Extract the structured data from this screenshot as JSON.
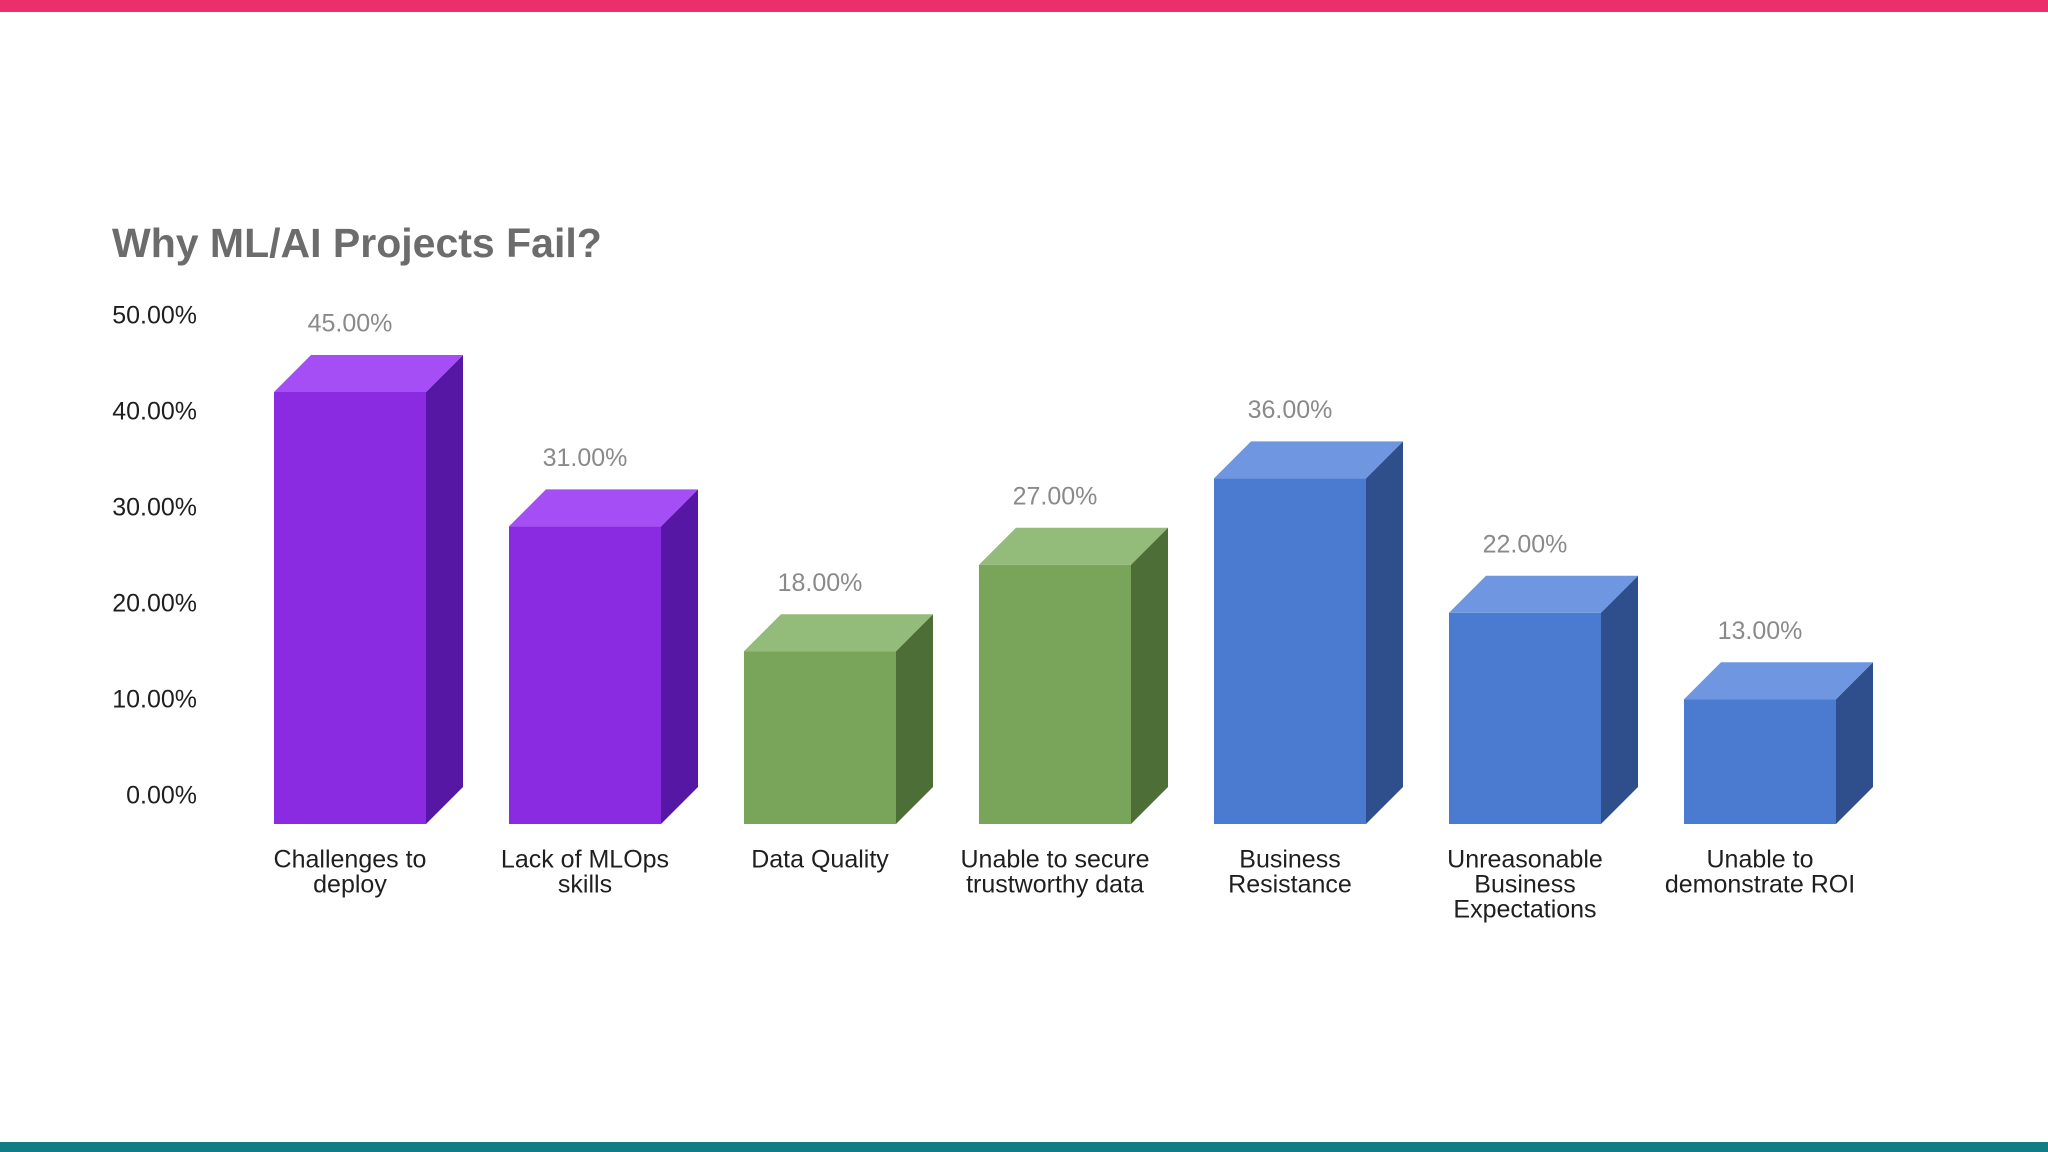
{
  "slide": {
    "top_bar_color": "#ec2f6c",
    "bottom_bar_color": "#117d82"
  },
  "chart_data": {
    "type": "bar",
    "style": "3d-column",
    "title": "Why ML/AI Projects Fail?",
    "xlabel": "",
    "ylabel": "",
    "ylim": [
      0,
      50
    ],
    "grid": false,
    "legend": "none",
    "y_ticks": [
      "0.00%",
      "10.00%",
      "20.00%",
      "30.00%",
      "40.00%",
      "50.00%"
    ],
    "categories": [
      [
        "Challenges to",
        "deploy"
      ],
      [
        "Lack of MLOps",
        "skills"
      ],
      [
        "Data Quality"
      ],
      [
        "Unable to secure",
        "trustworthy data"
      ],
      [
        "Business",
        "Resistance"
      ],
      [
        "Unreasonable",
        "Business",
        "Expectations"
      ],
      [
        "Unable to",
        "demonstrate ROI"
      ]
    ],
    "values": [
      45,
      31,
      18,
      27,
      36,
      22,
      13
    ],
    "data_labels": [
      "45.00%",
      "31.00%",
      "18.00%",
      "27.00%",
      "36.00%",
      "22.00%",
      "13.00%"
    ],
    "bar_colors": [
      {
        "front": "#8a2be2",
        "top": "#a64ef5",
        "side": "#5717a5"
      },
      {
        "front": "#8a2be2",
        "top": "#a64ef5",
        "side": "#5717a5"
      },
      {
        "front": "#79a55b",
        "top": "#93bb79",
        "side": "#4d6e37"
      },
      {
        "front": "#79a55b",
        "top": "#93bb79",
        "side": "#4d6e37"
      },
      {
        "front": "#4a7bd0",
        "top": "#6f97e1",
        "side": "#2e4f8c"
      },
      {
        "front": "#4a7bd0",
        "top": "#6f97e1",
        "side": "#2e4f8c"
      },
      {
        "front": "#4a7bd0",
        "top": "#6f97e1",
        "side": "#2e4f8c"
      }
    ]
  }
}
